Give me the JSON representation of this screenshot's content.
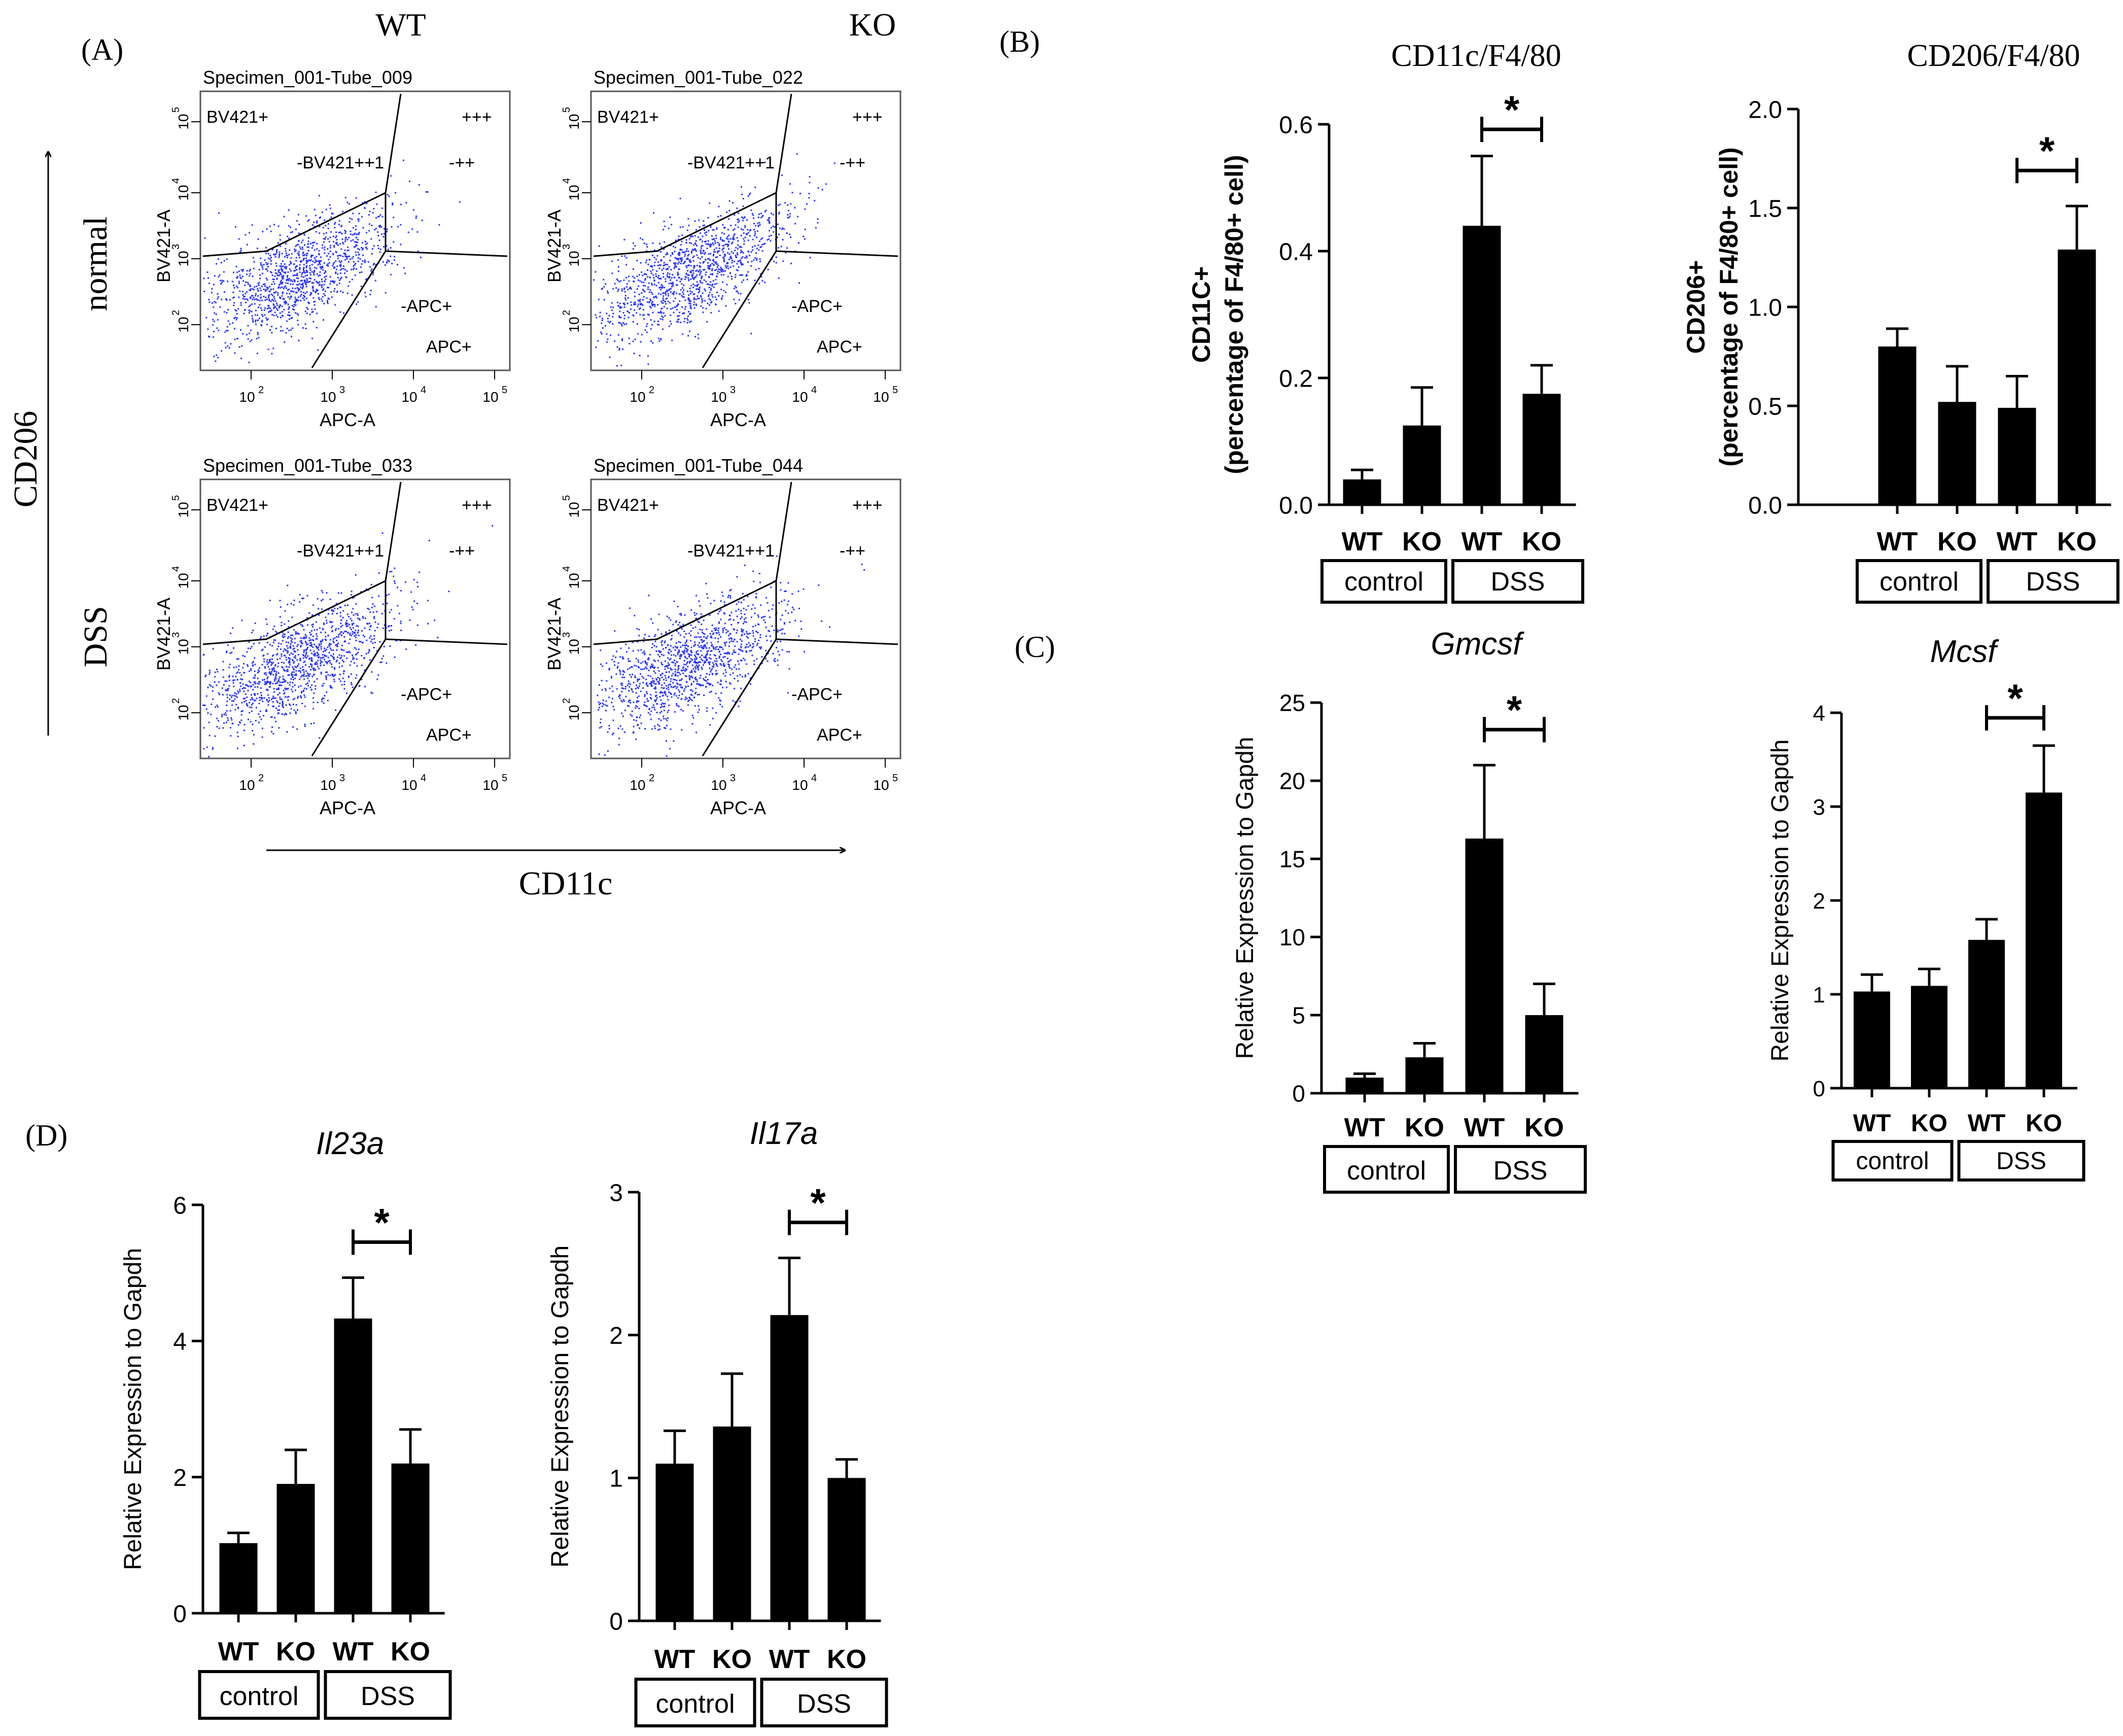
{
  "panel_labels": {
    "A": "(A)",
    "B": "(B)",
    "C": "(C)",
    "D": "(D)"
  },
  "flow": {
    "col_titles": [
      "WT",
      "KO"
    ],
    "row_titles": [
      "normal",
      "DSS"
    ],
    "x_axis_title": "CD11c",
    "y_axis_title": "CD206",
    "x_channel": "APC-A",
    "y_channel": "BV421-A",
    "tick_labels": [
      "10",
      "2",
      "10",
      "3",
      "10",
      "4",
      "10",
      "5"
    ],
    "gates": {
      "top_left": "BV421+",
      "top_right": "+++",
      "middle": "-BV421++1",
      "middle_right": "-++",
      "lower_right_a": "-APC+",
      "lower_right_b": "APC+"
    },
    "plots": [
      {
        "title": "Specimen_001-Tube_009",
        "row": 0,
        "col": 0
      },
      {
        "title": "Specimen_001-Tube_022",
        "row": 0,
        "col": 1
      },
      {
        "title": "Specimen_001-Tube_033",
        "row": 1,
        "col": 0
      },
      {
        "title": "Specimen_001-Tube_044",
        "row": 1,
        "col": 1
      }
    ],
    "dot_color": "#2a35ff"
  },
  "chart_data": [
    {
      "id": "cd11c",
      "panel": "B",
      "type": "bar",
      "title": "CD11c/F4/80",
      "title_style": "serif",
      "ylabel_lines": [
        "CD11C+",
        "(percentage of F4/80+ cell)"
      ],
      "ylabel_bold": true,
      "categories": [
        "WT",
        "KO",
        "WT",
        "KO"
      ],
      "values": [
        0.04,
        0.125,
        0.44,
        0.175
      ],
      "errors": [
        0.015,
        0.06,
        0.11,
        0.045
      ],
      "ylim": [
        0,
        0.6
      ],
      "yticks": [
        "0.0",
        "0.2",
        "0.4",
        "0.6"
      ],
      "groups": [
        "control",
        "DSS"
      ],
      "significance": {
        "label": "*",
        "from": 2,
        "to": 3
      }
    },
    {
      "id": "cd206",
      "panel": "B",
      "type": "bar",
      "title": "CD206/F4/80",
      "title_style": "serif",
      "ylabel_lines": [
        "CD206+",
        "(percentage of F4/80+ cell)"
      ],
      "ylabel_bold": true,
      "categories": [
        "WT",
        "KO",
        "WT",
        "KO"
      ],
      "values": [
        0.8,
        0.52,
        0.49,
        1.29
      ],
      "errors": [
        0.09,
        0.18,
        0.16,
        0.22
      ],
      "ylim": [
        0,
        2.0
      ],
      "yticks": [
        "0.0",
        "0.5",
        "1.0",
        "1.5",
        "2.0"
      ],
      "groups": [
        "control",
        "DSS"
      ],
      "significance": {
        "label": "*",
        "from": 2,
        "to": 3
      }
    },
    {
      "id": "gmcsf",
      "panel": "C",
      "type": "bar",
      "title": "Gmcsf",
      "title_style": "italic",
      "ylabel_lines": [
        "Relative Expression to Gapdh"
      ],
      "ylabel_bold": false,
      "categories": [
        "WT",
        "KO",
        "WT",
        "KO"
      ],
      "values": [
        1.0,
        2.3,
        16.3,
        5.0
      ],
      "errors": [
        0.25,
        0.9,
        4.7,
        2.0
      ],
      "ylim": [
        0,
        25
      ],
      "yticks": [
        "0",
        "5",
        "10",
        "15",
        "20",
        "25"
      ],
      "groups": [
        "control",
        "DSS"
      ],
      "significance": {
        "label": "*",
        "from": 2,
        "to": 3
      }
    },
    {
      "id": "mcsf",
      "panel": "C",
      "type": "bar",
      "title": "Mcsf",
      "title_style": "italic",
      "ylabel_lines": [
        "Relative Expression to Gapdh"
      ],
      "ylabel_bold": false,
      "categories": [
        "WT",
        "KO",
        "WT",
        "KO"
      ],
      "values": [
        1.03,
        1.09,
        1.58,
        3.15
      ],
      "errors": [
        0.18,
        0.18,
        0.22,
        0.5
      ],
      "ylim": [
        0,
        4
      ],
      "yticks": [
        "0",
        "1",
        "2",
        "3",
        "4"
      ],
      "groups": [
        "control",
        "DSS"
      ],
      "significance": {
        "label": "*",
        "from": 2,
        "to": 3
      }
    },
    {
      "id": "il23a",
      "panel": "D",
      "type": "bar",
      "title": "Il23a",
      "title_style": "italic",
      "ylabel_lines": [
        "Relative Expression to Gapdh"
      ],
      "ylabel_bold": false,
      "categories": [
        "WT",
        "KO",
        "WT",
        "KO"
      ],
      "values": [
        1.03,
        1.9,
        4.33,
        2.2
      ],
      "errors": [
        0.15,
        0.5,
        0.6,
        0.5
      ],
      "ylim": [
        0,
        6
      ],
      "yticks": [
        "0",
        "2",
        "4",
        "6"
      ],
      "groups": [
        "control",
        "DSS"
      ],
      "significance": {
        "label": "*",
        "from": 2,
        "to": 3
      }
    },
    {
      "id": "il17a",
      "panel": "D",
      "type": "bar",
      "title": "Il17a",
      "title_style": "italic",
      "ylabel_lines": [
        "Relative Expression to Gapdh"
      ],
      "ylabel_bold": false,
      "categories": [
        "WT",
        "KO",
        "WT",
        "KO"
      ],
      "values": [
        1.1,
        1.36,
        2.14,
        1.0
      ],
      "errors": [
        0.23,
        0.37,
        0.4,
        0.13
      ],
      "ylim": [
        0,
        3
      ],
      "yticks": [
        "0",
        "1",
        "2",
        "3"
      ],
      "groups": [
        "control",
        "DSS"
      ],
      "significance": {
        "label": "*",
        "from": 2,
        "to": 3
      }
    }
  ]
}
